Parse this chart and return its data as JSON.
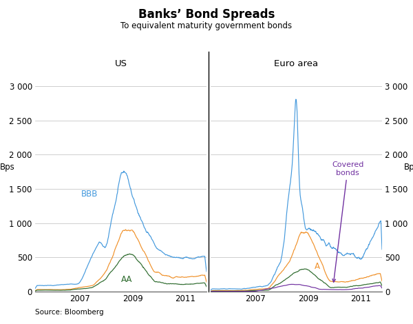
{
  "title": "Banks’ Bond Spreads",
  "subtitle": "To equivalent maturity government bonds",
  "source": "Source: Bloomberg",
  "left_panel_label": "US",
  "right_panel_label": "Euro area",
  "ylabel_left": "Bps",
  "ylabel_right": "Bps",
  "ylim": [
    0,
    3500
  ],
  "yticks": [
    0,
    500,
    1000,
    1500,
    2000,
    2500,
    3000
  ],
  "ytick_labels": [
    "0",
    "500",
    "1 000",
    "1 500",
    "2 000",
    "2 500",
    "3 000"
  ],
  "xticks": [
    2007,
    2009,
    2011
  ],
  "xlim": [
    2005.3,
    2011.8
  ],
  "colors": {
    "BBB": "#4499DD",
    "A": "#F0912A",
    "AA": "#2E6B2E",
    "covered": "#7030A0"
  },
  "background_color": "#ffffff",
  "grid_color": "#bbbbbb"
}
